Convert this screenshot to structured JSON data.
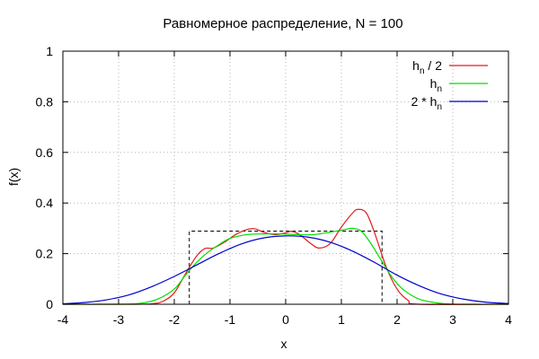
{
  "chart_data": {
    "type": "line",
    "title": "Равномерное распределение, N = 100",
    "xlabel": "x",
    "ylabel": "f(x)",
    "xlim": [
      -4,
      4
    ],
    "ylim": [
      0,
      1
    ],
    "x_ticks": [
      -4,
      -3,
      -2,
      -1,
      0,
      1,
      2,
      3,
      4
    ],
    "y_ticks": [
      0,
      0.2,
      0.4,
      0.6,
      0.8,
      1
    ],
    "y_tick_labels": [
      "0",
      "0.2",
      "0.4",
      "0.6",
      "0.8",
      "1"
    ],
    "grid": true,
    "legend_position": "top-right",
    "reference": {
      "style": "dashed",
      "color": "#000000",
      "points": [
        [
          -1.73,
          0
        ],
        [
          -1.73,
          0.289
        ],
        [
          1.73,
          0.289
        ],
        [
          1.73,
          0
        ]
      ]
    },
    "series": [
      {
        "name": "h",
        "name_sub": "n",
        "name_suffix": " / 2",
        "color": "#e41a1c",
        "points": [
          [
            -4.0,
            0.0
          ],
          [
            -2.8,
            0.0
          ],
          [
            -2.4,
            0.002
          ],
          [
            -2.2,
            0.012
          ],
          [
            -2.0,
            0.045
          ],
          [
            -1.8,
            0.12
          ],
          [
            -1.6,
            0.19
          ],
          [
            -1.45,
            0.22
          ],
          [
            -1.3,
            0.222
          ],
          [
            -1.1,
            0.245
          ],
          [
            -0.9,
            0.275
          ],
          [
            -0.7,
            0.295
          ],
          [
            -0.55,
            0.298
          ],
          [
            -0.4,
            0.285
          ],
          [
            -0.2,
            0.275
          ],
          [
            0.0,
            0.282
          ],
          [
            0.1,
            0.288
          ],
          [
            0.25,
            0.275
          ],
          [
            0.45,
            0.24
          ],
          [
            0.6,
            0.222
          ],
          [
            0.8,
            0.24
          ],
          [
            1.0,
            0.305
          ],
          [
            1.2,
            0.36
          ],
          [
            1.3,
            0.375
          ],
          [
            1.45,
            0.36
          ],
          [
            1.6,
            0.28
          ],
          [
            1.8,
            0.15
          ],
          [
            2.0,
            0.06
          ],
          [
            2.2,
            0.015
          ],
          [
            2.4,
            0.0
          ],
          [
            4.0,
            0.0
          ]
        ]
      },
      {
        "name": "h",
        "name_sub": "n",
        "name_suffix": "",
        "color": "#00dd00",
        "points": [
          [
            -4.0,
            0.0
          ],
          [
            -3.0,
            0.0
          ],
          [
            -2.6,
            0.004
          ],
          [
            -2.3,
            0.02
          ],
          [
            -2.0,
            0.06
          ],
          [
            -1.8,
            0.115
          ],
          [
            -1.6,
            0.165
          ],
          [
            -1.4,
            0.205
          ],
          [
            -1.2,
            0.235
          ],
          [
            -1.0,
            0.26
          ],
          [
            -0.7,
            0.275
          ],
          [
            -0.4,
            0.278
          ],
          [
            -0.1,
            0.278
          ],
          [
            0.2,
            0.275
          ],
          [
            0.5,
            0.275
          ],
          [
            0.8,
            0.285
          ],
          [
            1.1,
            0.297
          ],
          [
            1.2,
            0.3
          ],
          [
            1.35,
            0.29
          ],
          [
            1.5,
            0.25
          ],
          [
            1.7,
            0.18
          ],
          [
            1.9,
            0.11
          ],
          [
            2.1,
            0.06
          ],
          [
            2.4,
            0.02
          ],
          [
            2.8,
            0.003
          ],
          [
            3.2,
            0.0
          ],
          [
            4.0,
            0.0
          ]
        ]
      },
      {
        "name": "2 * h",
        "name_sub": "n",
        "name_suffix": "",
        "color": "#0000cc",
        "points": [
          [
            -4.0,
            0.002
          ],
          [
            -3.6,
            0.007
          ],
          [
            -3.2,
            0.018
          ],
          [
            -2.8,
            0.038
          ],
          [
            -2.4,
            0.07
          ],
          [
            -2.0,
            0.11
          ],
          [
            -1.6,
            0.155
          ],
          [
            -1.2,
            0.2
          ],
          [
            -0.8,
            0.238
          ],
          [
            -0.4,
            0.262
          ],
          [
            0.0,
            0.27
          ],
          [
            0.4,
            0.265
          ],
          [
            0.8,
            0.245
          ],
          [
            1.2,
            0.21
          ],
          [
            1.6,
            0.165
          ],
          [
            2.0,
            0.115
          ],
          [
            2.4,
            0.073
          ],
          [
            2.8,
            0.04
          ],
          [
            3.2,
            0.02
          ],
          [
            3.6,
            0.008
          ],
          [
            4.0,
            0.003
          ]
        ]
      }
    ]
  }
}
